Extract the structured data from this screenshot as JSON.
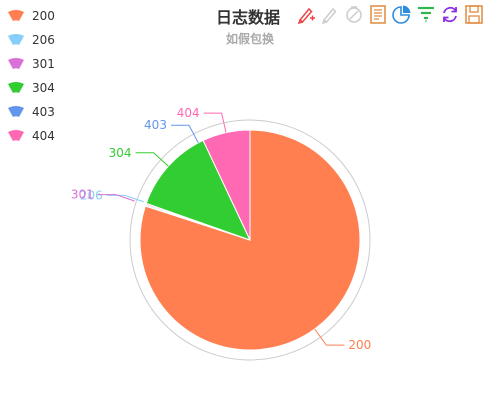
{
  "title": "日志数据",
  "subtitle": "如假包换",
  "colors": {
    "200": "#ff7f50",
    "206": "#87cefa",
    "301": "#da70d6",
    "304": "#32cd32",
    "403": "#6495ed",
    "404": "#ff69b4"
  },
  "legend": [
    {
      "label": "200",
      "color": "#ff7f50"
    },
    {
      "label": "206",
      "color": "#87cefa"
    },
    {
      "label": "301",
      "color": "#da70d6"
    },
    {
      "label": "304",
      "color": "#32cd32"
    },
    {
      "label": "403",
      "color": "#6495ed"
    },
    {
      "label": "404",
      "color": "#ff69b4"
    }
  ],
  "toolbox": [
    {
      "icon": "mark-pen-icon",
      "color": "#e44"
    },
    {
      "icon": "mark-undo-icon",
      "color": "#ccc"
    },
    {
      "icon": "mark-clear-icon",
      "color": "#ccc"
    },
    {
      "icon": "data-view-icon",
      "color": "#e08a3c"
    },
    {
      "icon": "pie-chart-icon",
      "color": "#2b8de0"
    },
    {
      "icon": "funnel-icon",
      "color": "#2db84d"
    },
    {
      "icon": "restore-icon",
      "color": "#8a2be2"
    },
    {
      "icon": "save-image-icon",
      "color": "#e08a3c"
    }
  ],
  "chart_data": {
    "type": "pie",
    "title": "日志数据",
    "subtitle": "如假包换",
    "legend_position": "left",
    "categories": [
      "200",
      "206",
      "301",
      "304",
      "403",
      "404"
    ],
    "values": [
      80,
      0.2,
      0.2,
      12.6,
      0,
      7
    ]
  }
}
